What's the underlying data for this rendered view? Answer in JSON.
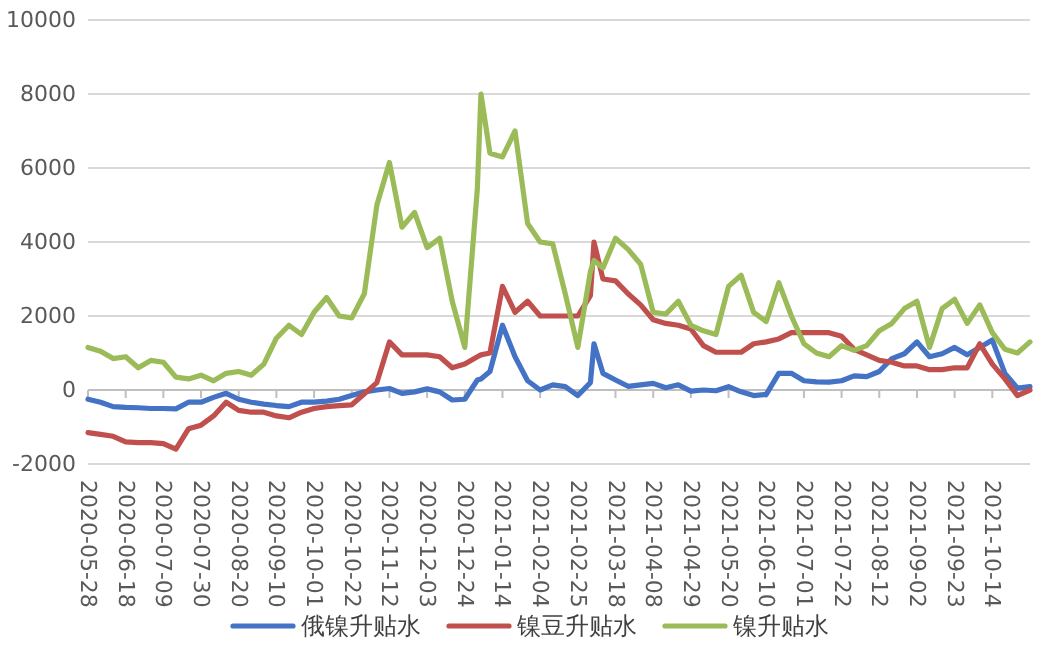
{
  "chart_data": {
    "type": "line",
    "x": [
      "2020-05-28",
      "2020-06-04",
      "2020-06-11",
      "2020-06-18",
      "2020-06-25",
      "2020-07-02",
      "2020-07-09",
      "2020-07-16",
      "2020-07-23",
      "2020-07-30",
      "2020-08-06",
      "2020-08-13",
      "2020-08-20",
      "2020-08-27",
      "2020-09-03",
      "2020-09-10",
      "2020-09-17",
      "2020-09-24",
      "2020-10-01",
      "2020-10-08",
      "2020-10-15",
      "2020-10-22",
      "2020-10-29",
      "2020-11-05",
      "2020-11-12",
      "2020-11-19",
      "2020-11-26",
      "2020-12-03",
      "2020-12-10",
      "2020-12-17",
      "2020-12-24",
      "2020-12-31",
      "2021-01-02",
      "2021-01-07",
      "2021-01-14",
      "2021-01-21",
      "2021-01-28",
      "2021-02-04",
      "2021-02-11",
      "2021-02-18",
      "2021-02-25",
      "2021-03-04",
      "2021-03-06",
      "2021-03-11",
      "2021-03-18",
      "2021-03-25",
      "2021-04-01",
      "2021-04-08",
      "2021-04-15",
      "2021-04-22",
      "2021-04-29",
      "2021-05-06",
      "2021-05-13",
      "2021-05-20",
      "2021-05-27",
      "2021-06-03",
      "2021-06-10",
      "2021-06-17",
      "2021-06-24",
      "2021-07-01",
      "2021-07-08",
      "2021-07-15",
      "2021-07-22",
      "2021-07-29",
      "2021-08-05",
      "2021-08-12",
      "2021-08-19",
      "2021-08-26",
      "2021-09-02",
      "2021-09-09",
      "2021-09-16",
      "2021-09-23",
      "2021-09-30",
      "2021-10-07",
      "2021-10-14",
      "2021-10-21",
      "2021-10-28",
      "2021-11-04"
    ],
    "series": [
      {
        "name": "俄镍升贴水",
        "color": "#4472c4",
        "values": [
          -250,
          -330,
          -450,
          -470,
          -480,
          -500,
          -500,
          -510,
          -330,
          -330,
          -200,
          -90,
          -250,
          -330,
          -380,
          -420,
          -450,
          -330,
          -330,
          -300,
          -250,
          -150,
          -50,
          0,
          40,
          -90,
          -50,
          30,
          -50,
          -270,
          -250,
          270,
          300,
          500,
          1750,
          900,
          250,
          0,
          140,
          90,
          -150,
          200,
          1250,
          450,
          270,
          100,
          140,
          180,
          60,
          140,
          -30,
          0,
          -20,
          90,
          -50,
          -150,
          -120,
          450,
          450,
          250,
          220,
          215,
          250,
          380,
          360,
          500,
          850,
          980,
          1300,
          900,
          980,
          1150,
          950,
          1150,
          1350,
          450,
          50,
          90
        ]
      },
      {
        "name": "镍豆升贴水",
        "color": "#c0504d",
        "values": [
          -1150,
          -1200,
          -1250,
          -1400,
          -1420,
          -1420,
          -1450,
          -1600,
          -1050,
          -950,
          -700,
          -330,
          -550,
          -600,
          -600,
          -700,
          -750,
          -600,
          -500,
          -450,
          -420,
          -400,
          -100,
          200,
          1300,
          950,
          950,
          950,
          900,
          600,
          700,
          900,
          950,
          1000,
          2800,
          2100,
          2400,
          2000,
          2000,
          2000,
          2000,
          2550,
          4000,
          3000,
          2950,
          2600,
          2300,
          1900,
          1800,
          1750,
          1650,
          1200,
          1020,
          1020,
          1020,
          1250,
          1300,
          1380,
          1550,
          1550,
          1550,
          1550,
          1450,
          1100,
          950,
          800,
          750,
          650,
          650,
          550,
          550,
          600,
          600,
          1250,
          700,
          300,
          -150,
          0
        ]
      },
      {
        "name": "镍升贴水",
        "color": "#9bbb59",
        "values": [
          1150,
          1050,
          850,
          900,
          600,
          800,
          750,
          350,
          300,
          400,
          250,
          450,
          500,
          400,
          700,
          1400,
          1750,
          1500,
          2100,
          2500,
          2000,
          1950,
          2600,
          5000,
          6150,
          4400,
          4800,
          3850,
          4100,
          2400,
          1150,
          5450,
          8000,
          6400,
          6300,
          7000,
          4500,
          4000,
          3950,
          2600,
          1150,
          3200,
          3500,
          3300,
          4100,
          3800,
          3400,
          2100,
          2050,
          2400,
          1750,
          1600,
          1500,
          2800,
          3100,
          2100,
          1850,
          2900,
          2000,
          1250,
          1000,
          900,
          1200,
          1070,
          1200,
          1600,
          1800,
          2200,
          2400,
          1150,
          2200,
          2450,
          1800,
          2300,
          1550,
          1100,
          1000,
          1300
        ]
      }
    ],
    "xlim": [
      "2020-05-28",
      "2021-11-04"
    ],
    "xticks": [
      "2020-05-28",
      "2020-06-18",
      "2020-07-09",
      "2020-07-30",
      "2020-08-20",
      "2020-09-10",
      "2020-10-01",
      "2020-10-22",
      "2020-11-12",
      "2020-12-03",
      "2020-12-24",
      "2021-01-14",
      "2021-02-04",
      "2021-02-25",
      "2021-03-18",
      "2021-04-08",
      "2021-04-29",
      "2021-05-20",
      "2021-06-10",
      "2021-07-01",
      "2021-07-22",
      "2021-08-12",
      "2021-09-02",
      "2021-09-23",
      "2021-10-14"
    ],
    "ylim": [
      -2000,
      10000
    ],
    "yticks": [
      -2000,
      0,
      2000,
      4000,
      6000,
      8000,
      10000
    ],
    "grid": "y",
    "legend": "bottom"
  }
}
